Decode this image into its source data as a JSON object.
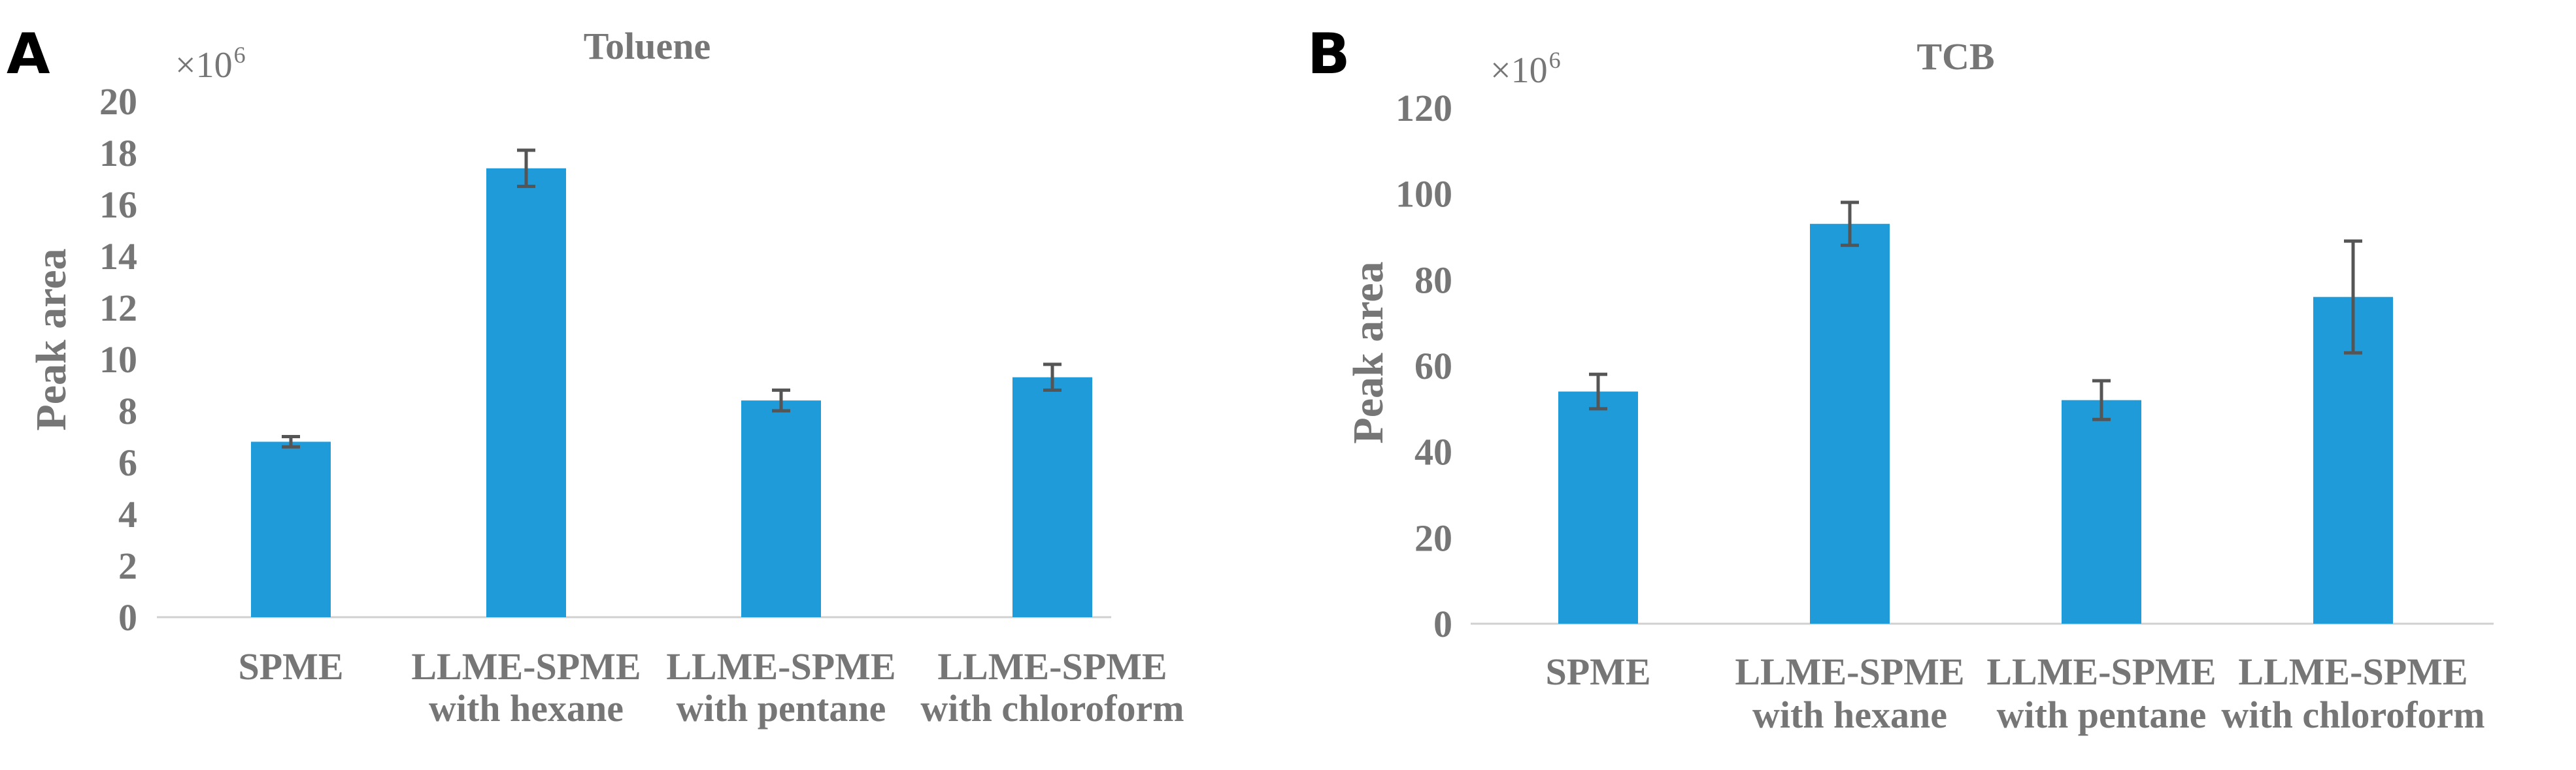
{
  "chart_data": [
    {
      "id": "A",
      "panel_label": "A",
      "type": "bar",
      "title": "Toluene",
      "ylabel": "Peak area",
      "multiplier": "×10",
      "multiplier_exp": "6",
      "ylim": [
        0,
        20
      ],
      "yticks": [
        "0",
        "2",
        "4",
        "6",
        "8",
        "10",
        "12",
        "14",
        "16",
        "18",
        "20"
      ],
      "categories": [
        [
          "SPME"
        ],
        [
          "LLME-SPME",
          "with hexane"
        ],
        [
          "LLME-SPME",
          "with pentane"
        ],
        [
          "LLME-SPME",
          "with chloroform"
        ]
      ],
      "values": [
        6.8,
        17.4,
        8.4,
        9.3
      ],
      "errors": [
        0.2,
        0.7,
        0.4,
        0.5
      ],
      "colors": {
        "bar": "#1f9bd9",
        "error": "#555555"
      }
    },
    {
      "id": "B",
      "panel_label": "B",
      "type": "bar",
      "title": "TCB",
      "ylabel": "Peak area",
      "multiplier": "×10",
      "multiplier_exp": "6",
      "ylim": [
        0,
        120
      ],
      "yticks": [
        "0",
        "20",
        "40",
        "60",
        "80",
        "100",
        "120"
      ],
      "categories": [
        [
          "SPME"
        ],
        [
          "LLME-SPME",
          "with hexane"
        ],
        [
          "LLME-SPME",
          "with pentane"
        ],
        [
          "LLME-SPME",
          "with chloroform"
        ]
      ],
      "values": [
        54,
        93,
        52,
        76
      ],
      "errors": [
        4,
        5,
        4.5,
        13
      ],
      "colors": {
        "bar": "#1f9bd9",
        "error": "#555555"
      }
    }
  ]
}
